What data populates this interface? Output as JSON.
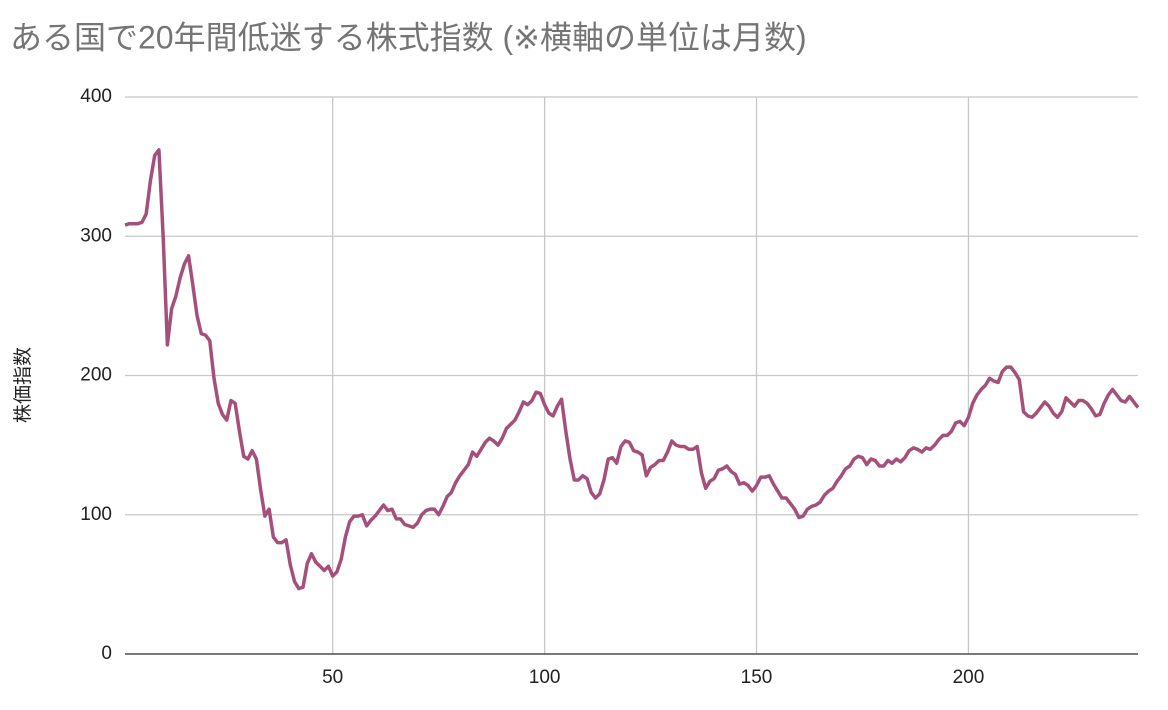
{
  "chart_data": {
    "type": "line",
    "title": "ある国で20年間低迷する株式指数 (※横軸の単位は月数)",
    "ylabel": "株価指数",
    "x": [
      1,
      2,
      3,
      4,
      5,
      6,
      7,
      8,
      9,
      10,
      11,
      12,
      13,
      14,
      15,
      16,
      17,
      18,
      19,
      20,
      21,
      22,
      23,
      24,
      25,
      26,
      27,
      28,
      29,
      30,
      31,
      32,
      33,
      34,
      35,
      36,
      37,
      38,
      39,
      40,
      41,
      42,
      43,
      44,
      45,
      46,
      47,
      48,
      49,
      50,
      51,
      52,
      53,
      54,
      55,
      56,
      57,
      58,
      59,
      60,
      61,
      62,
      63,
      64,
      65,
      66,
      67,
      68,
      69,
      70,
      71,
      72,
      73,
      74,
      75,
      76,
      77,
      78,
      79,
      80,
      81,
      82,
      83,
      84,
      85,
      86,
      87,
      88,
      89,
      90,
      91,
      92,
      93,
      94,
      95,
      96,
      97,
      98,
      99,
      100,
      101,
      102,
      103,
      104,
      105,
      106,
      107,
      108,
      109,
      110,
      111,
      112,
      113,
      114,
      115,
      116,
      117,
      118,
      119,
      120,
      121,
      122,
      123,
      124,
      125,
      126,
      127,
      128,
      129,
      130,
      131,
      132,
      133,
      134,
      135,
      136,
      137,
      138,
      139,
      140,
      141,
      142,
      143,
      144,
      145,
      146,
      147,
      148,
      149,
      150,
      151,
      152,
      153,
      154,
      155,
      156,
      157,
      158,
      159,
      160,
      161,
      162,
      163,
      164,
      165,
      166,
      167,
      168,
      169,
      170,
      171,
      172,
      173,
      174,
      175,
      176,
      177,
      178,
      179,
      180,
      181,
      182,
      183,
      184,
      185,
      186,
      187,
      188,
      189,
      190,
      191,
      192,
      193,
      194,
      195,
      196,
      197,
      198,
      199,
      200,
      201,
      202,
      203,
      204,
      205,
      206,
      207,
      208,
      209,
      210,
      211,
      212,
      213,
      214,
      215,
      216,
      217,
      218,
      219,
      220,
      221,
      222,
      223,
      224,
      225,
      226,
      227,
      228,
      229,
      230,
      231,
      232,
      233,
      234,
      235,
      236,
      237,
      238,
      239,
      240
    ],
    "values": [
      308,
      309,
      309,
      309,
      310,
      316,
      340,
      358,
      362,
      300,
      222,
      248,
      257,
      270,
      280,
      286,
      265,
      243,
      230,
      229,
      225,
      198,
      180,
      172,
      168,
      182,
      180,
      160,
      142,
      140,
      146,
      140,
      118,
      99,
      104,
      84,
      80,
      80,
      82,
      64,
      52,
      47,
      48,
      65,
      72,
      66,
      63,
      60,
      63,
      56,
      59,
      68,
      84,
      95,
      99,
      99,
      100,
      92,
      96,
      99,
      103,
      107,
      103,
      104,
      97,
      97,
      93,
      92,
      91,
      94,
      100,
      103,
      104,
      104,
      100,
      106,
      113,
      116,
      123,
      128,
      132,
      136,
      145,
      142,
      147,
      152,
      155,
      153,
      150,
      155,
      162,
      165,
      168,
      174,
      181,
      179,
      182,
      188,
      187,
      179,
      173,
      171,
      178,
      183,
      160,
      140,
      125,
      125,
      128,
      126,
      116,
      112,
      115,
      125,
      140,
      141,
      137,
      149,
      153,
      152,
      146,
      145,
      143,
      128,
      134,
      136,
      139,
      139,
      145,
      153,
      150,
      149,
      149,
      147,
      147,
      149,
      130,
      119,
      124,
      126,
      132,
      133,
      135,
      131,
      129,
      122,
      123,
      121,
      117,
      121,
      127,
      127,
      128,
      122,
      117,
      112,
      112,
      108,
      104,
      98,
      99,
      104,
      106,
      107,
      109,
      114,
      117,
      119,
      124,
      128,
      133,
      135,
      140,
      142,
      141,
      136,
      140,
      139,
      135,
      135,
      139,
      137,
      140,
      138,
      141,
      146,
      148,
      147,
      145,
      148,
      147,
      150,
      154,
      157,
      157,
      160,
      166,
      167,
      164,
      170,
      180,
      186,
      190,
      193,
      198,
      196,
      195,
      203,
      206,
      206,
      202,
      197,
      174,
      171,
      170,
      173,
      177,
      181,
      178,
      173,
      170,
      174,
      184,
      181,
      178,
      182,
      182,
      180,
      176,
      171,
      172,
      180,
      186,
      190,
      186,
      182,
      181,
      185,
      181,
      177
    ],
    "color": "#a4507b",
    "xlim": [
      1,
      240
    ],
    "ylim": [
      0,
      400
    ],
    "xticks": [
      50,
      100,
      150,
      200
    ],
    "yticks": [
      0,
      100,
      200,
      300,
      400
    ],
    "grid": true
  }
}
